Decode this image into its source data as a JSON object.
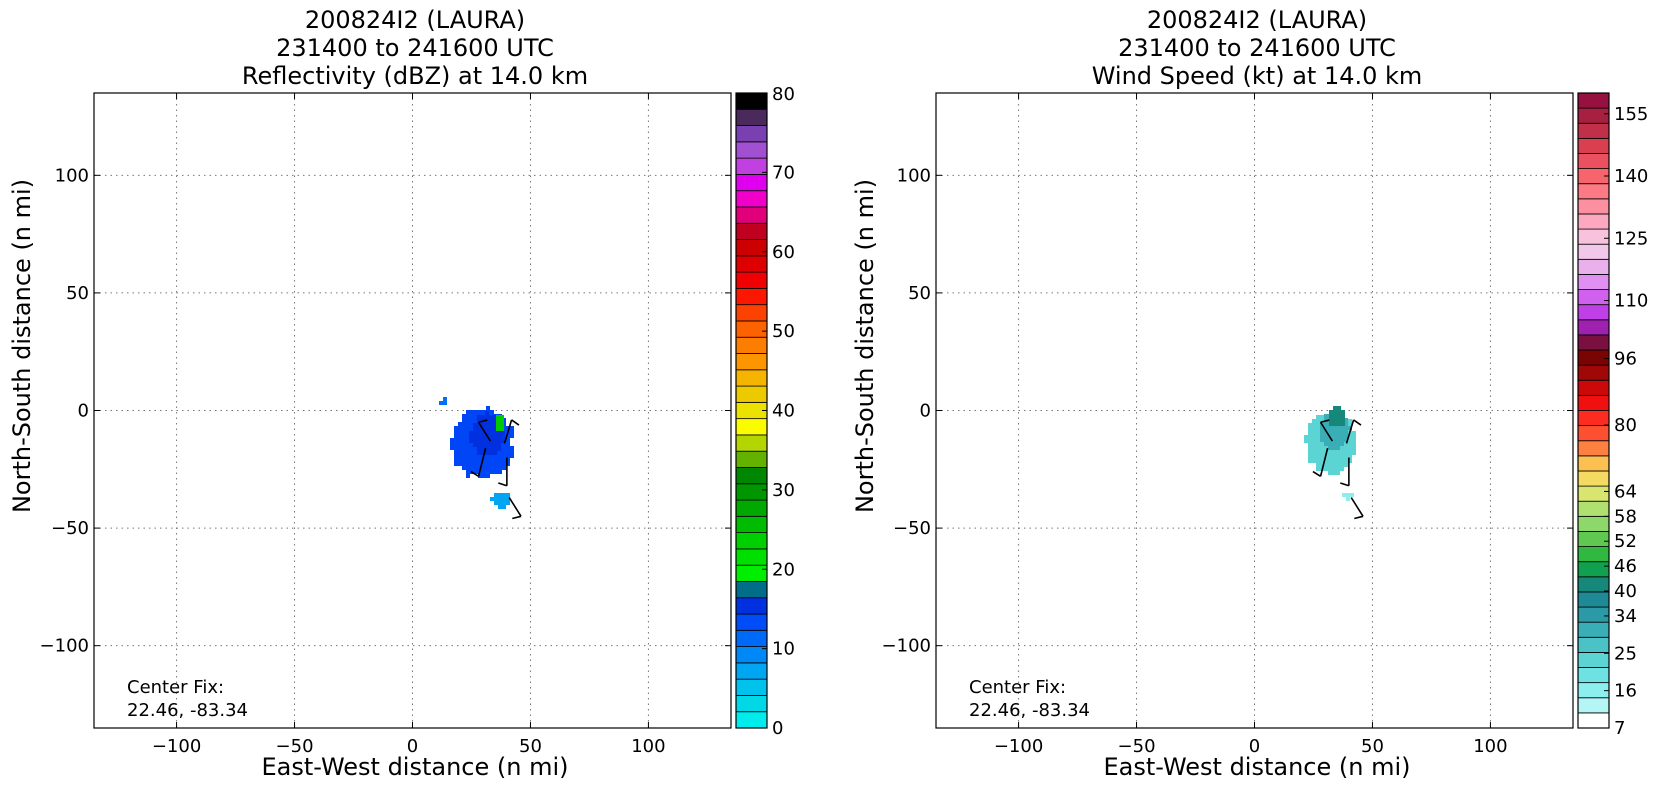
{
  "chart_data": [
    {
      "type": "heatmap",
      "title_lines": [
        "200824I2 (LAURA)",
        "231400 to 241600 UTC",
        "Reflectivity (dBZ) at 14.0 km"
      ],
      "xlabel": "East-West distance (n mi)",
      "ylabel": "North-South distance (n mi)",
      "xlim": [
        -135,
        135
      ],
      "ylim": [
        -135,
        135
      ],
      "xticks": [
        -100,
        -50,
        0,
        50,
        100
      ],
      "yticks": [
        -100,
        -50,
        0,
        50,
        100
      ],
      "xtick_labels": [
        "−100",
        "−50",
        "0",
        "50",
        "100"
      ],
      "ytick_labels": [
        "−100",
        "−50",
        "0",
        "50",
        "100"
      ],
      "grid": true,
      "annotation": [
        "Center Fix:",
        "22.46, -83.34"
      ],
      "colorbar": {
        "colors": [
          "#00ecec",
          "#00d8e8",
          "#00c2ec",
          "#00a6f2",
          "#0088f6",
          "#006af8",
          "#004cf8",
          "#0030e0",
          "#006e88",
          "#00ee00",
          "#00e000",
          "#00d000",
          "#00bc00",
          "#00a800",
          "#009600",
          "#008600",
          "#64b200",
          "#b4d600",
          "#fcfc00",
          "#ece200",
          "#ecca00",
          "#f4b400",
          "#fc9600",
          "#fc7e00",
          "#fc6200",
          "#fc4200",
          "#fc1800",
          "#f00000",
          "#de0000",
          "#cc0000",
          "#c00020",
          "#e0007a",
          "#f000c8",
          "#e000f0",
          "#c040e0",
          "#a050d0",
          "#7a40b0",
          "#4a2a5a",
          "#000000"
        ],
        "min": 0,
        "max": 80,
        "tick_values": [
          0,
          10,
          20,
          30,
          40,
          50,
          60,
          70,
          80
        ],
        "tick_labels": [
          "0",
          "10",
          "20",
          "30",
          "40",
          "50",
          "60",
          "70",
          "80"
        ]
      },
      "data_regions": [
        {
          "x": 29,
          "y": -13,
          "rx": 13,
          "ry": 15,
          "color": "#0046f6"
        },
        {
          "x": 31,
          "y": -9,
          "rx": 7,
          "ry": 9,
          "color": "#0030e0"
        },
        {
          "x": 36,
          "y": -4,
          "rx": 2.5,
          "ry": 4,
          "color": "#00c800"
        },
        {
          "x": 37,
          "y": -37,
          "rx": 4,
          "ry": 3.5,
          "color": "#00a6f2"
        },
        {
          "x": 13,
          "y": 4,
          "rx": 1.6,
          "ry": 1.6,
          "color": "#0070f6"
        }
      ],
      "wind_barbs": [
        {
          "x": 33,
          "y": -13,
          "dx": -5,
          "dy": 8
        },
        {
          "x": 39,
          "y": -14,
          "dx": 3,
          "dy": 10
        },
        {
          "x": 31,
          "y": -16,
          "dx": -3,
          "dy": -12
        },
        {
          "x": 40,
          "y": -20,
          "dx": 0,
          "dy": -12
        },
        {
          "x": 41,
          "y": -37,
          "dx": 5,
          "dy": -8
        }
      ]
    },
    {
      "type": "heatmap",
      "title_lines": [
        "200824I2 (LAURA)",
        "231400 to 241600 UTC",
        "Wind Speed (kt) at 14.0 km"
      ],
      "xlabel": "East-West distance (n mi)",
      "ylabel": "North-South distance (n mi)",
      "xlim": [
        -135,
        135
      ],
      "ylim": [
        -135,
        135
      ],
      "xticks": [
        -100,
        -50,
        0,
        50,
        100
      ],
      "yticks": [
        -100,
        -50,
        0,
        50,
        100
      ],
      "xtick_labels": [
        "−100",
        "−50",
        "0",
        "50",
        "100"
      ],
      "ytick_labels": [
        "−100",
        "−50",
        "0",
        "50",
        "100"
      ],
      "grid": true,
      "annotation": [
        "Center Fix:",
        "22.46, -83.34"
      ],
      "colorbar": {
        "colors": [
          "#ffffff",
          "#b4f6f6",
          "#8ceeee",
          "#6ee2e2",
          "#5cd4d4",
          "#4ac2c6",
          "#3aaeb6",
          "#2c9aa6",
          "#1e8a96",
          "#16887a",
          "#10a050",
          "#30b840",
          "#60c850",
          "#8cd86a",
          "#b0e070",
          "#d8e670",
          "#f4da60",
          "#fcc050",
          "#fc8040",
          "#fc5030",
          "#fc2c20",
          "#f01010",
          "#cc0808",
          "#a00808",
          "#7a0404",
          "#7a1040",
          "#a020b0",
          "#c040e8",
          "#d060ee",
          "#e090f0",
          "#eab0ec",
          "#f2c8ea",
          "#f8c2dc",
          "#fca8c0",
          "#fc90a0",
          "#fc7a84",
          "#f6646c",
          "#ea5060",
          "#d84050",
          "#c03048",
          "#a82040",
          "#961040"
        ],
        "min": 7,
        "max": 160,
        "tick_values": [
          7,
          16,
          25,
          34,
          40,
          46,
          52,
          58,
          64,
          80,
          96,
          110,
          125,
          140,
          155
        ],
        "tick_labels": [
          "7",
          "16",
          "25",
          "34",
          "40",
          "46",
          "52",
          "58",
          "64",
          "80",
          "96",
          "110",
          "125",
          "140",
          "155"
        ]
      },
      "data_regions": [
        {
          "x": 32,
          "y": -13,
          "rx": 11,
          "ry": 13,
          "color": "#5cd4d4"
        },
        {
          "x": 33,
          "y": -8,
          "rx": 7,
          "ry": 8,
          "color": "#3aaeb6"
        },
        {
          "x": 34,
          "y": -2,
          "rx": 4,
          "ry": 4,
          "color": "#16887a"
        },
        {
          "x": 39,
          "y": -35,
          "rx": 2,
          "ry": 1.8,
          "color": "#8ceeee"
        }
      ],
      "wind_barbs": [
        {
          "x": 33,
          "y": -13,
          "dx": -5,
          "dy": 8
        },
        {
          "x": 39,
          "y": -14,
          "dx": 3,
          "dy": 10
        },
        {
          "x": 31,
          "y": -16,
          "dx": -3,
          "dy": -12
        },
        {
          "x": 40,
          "y": -20,
          "dx": 0,
          "dy": -12
        },
        {
          "x": 41,
          "y": -37,
          "dx": 5,
          "dy": -8
        }
      ]
    }
  ]
}
